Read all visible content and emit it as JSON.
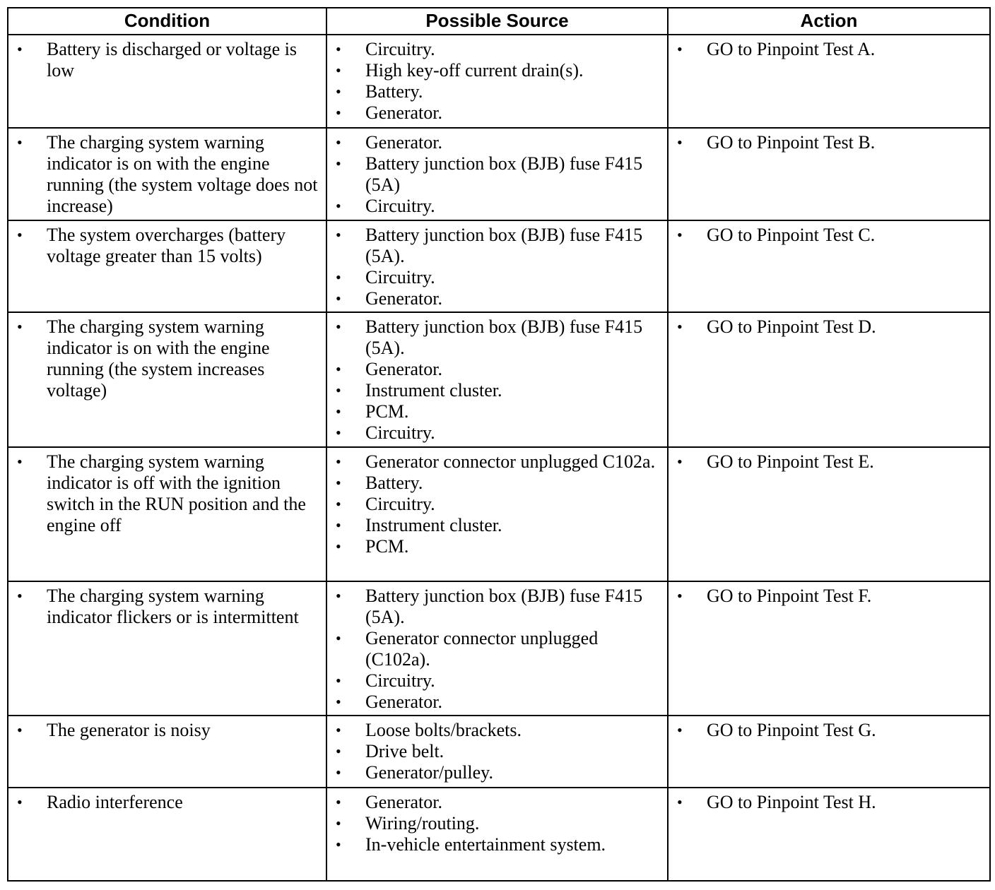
{
  "headers": [
    "Condition",
    "Possible Source",
    "Action"
  ],
  "rows": [
    {
      "condition": [
        "Battery is discharged or voltage is low"
      ],
      "sources": [
        "Circuitry.",
        "High key-off current drain(s).",
        "Battery.",
        "Generator."
      ],
      "action": [
        "GO to Pinpoint Test A."
      ]
    },
    {
      "condition": [
        "The charging system warning indicator is on with the engine running (the system voltage does not increase)"
      ],
      "sources": [
        "Generator.",
        "Battery junction box (BJB) fuse F415 (5A)",
        "Circuitry."
      ],
      "action": [
        "GO to Pinpoint Test B."
      ]
    },
    {
      "condition": [
        "The system overcharges (battery voltage greater than 15 volts)"
      ],
      "sources": [
        "Battery junction box (BJB) fuse F415 (5A).",
        "Circuitry.",
        "Generator."
      ],
      "action": [
        "GO to Pinpoint Test C."
      ]
    },
    {
      "condition": [
        "The charging system warning indicator is on with the engine running (the system increases voltage)"
      ],
      "sources": [
        "Battery junction box (BJB) fuse F415 (5A).",
        "Generator.",
        "Instrument cluster.",
        "PCM.",
        "Circuitry."
      ],
      "action": [
        "GO to Pinpoint Test D."
      ]
    },
    {
      "condition": [
        "The charging system warning indicator is off with the ignition switch in the RUN position and the engine off"
      ],
      "sources": [
        "Generator connector unplugged C102a.",
        "Battery.",
        "Circuitry.",
        "Instrument cluster.",
        "PCM."
      ],
      "action": [
        "GO to Pinpoint Test E."
      ]
    },
    {
      "condition": [
        "The charging system warning indicator flickers or is intermittent"
      ],
      "sources": [
        "Battery junction box (BJB) fuse F415 (5A).",
        "Generator connector unplugged (C102a).",
        "Circuitry.",
        "Generator."
      ],
      "action": [
        "GO to Pinpoint Test F."
      ]
    },
    {
      "condition": [
        "The generator is noisy"
      ],
      "sources": [
        "Loose bolts/brackets.",
        "Drive belt.",
        "Generator/pulley."
      ],
      "action": [
        "GO to Pinpoint Test G."
      ]
    },
    {
      "condition": [
        "Radio interference"
      ],
      "sources": [
        "Generator.",
        "Wiring/routing.",
        "In-vehicle entertainment system."
      ],
      "action": [
        "GO to Pinpoint Test H."
      ]
    }
  ]
}
